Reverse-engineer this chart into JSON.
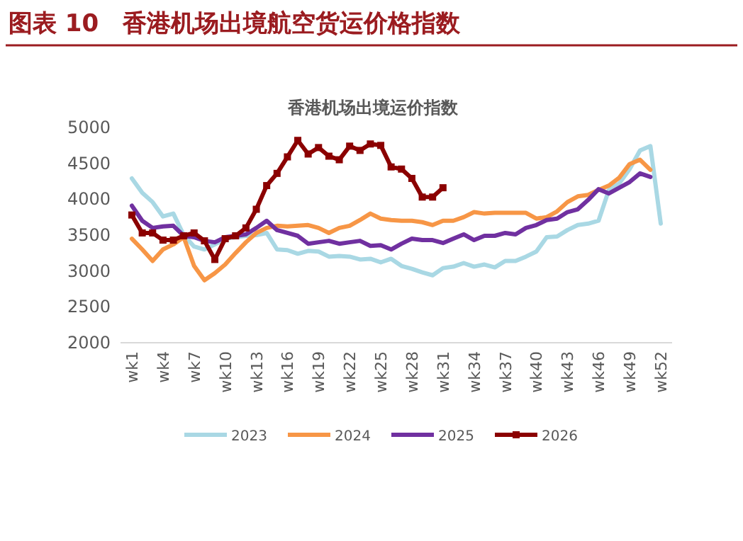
{
  "chart_data": {
    "type": "line",
    "title": "图表 10　香港机场出境航空货运价格指数",
    "subtitle": "香港机场出境运价指数",
    "categories": [
      "wk1",
      null,
      null,
      "wk4",
      null,
      null,
      "wk7",
      null,
      null,
      "wk10",
      null,
      null,
      "wk13",
      null,
      null,
      "wk16",
      null,
      null,
      "wk19",
      null,
      null,
      "wk22",
      null,
      null,
      "wk25",
      null,
      null,
      "wk28",
      null,
      null,
      "wk31",
      null,
      null,
      "wk34",
      null,
      null,
      "wk37",
      null,
      null,
      "wk40",
      null,
      null,
      "wk43",
      null,
      null,
      "wk46",
      null,
      null,
      "wk49",
      null,
      null,
      "wk52"
    ],
    "ylim": [
      2000,
      5000
    ],
    "yticks": [
      2000,
      2500,
      3000,
      3500,
      4000,
      4500,
      5000
    ],
    "grid": false,
    "legend": "bottom",
    "series": [
      {
        "name": "2023",
        "color": "#a9d8e4",
        "marker": "none",
        "values": [
          4290,
          4090,
          3960,
          3760,
          3800,
          3500,
          3340,
          3300,
          3370,
          3450,
          3470,
          3490,
          3500,
          3530,
          3300,
          3290,
          3240,
          3280,
          3270,
          3200,
          3210,
          3200,
          3160,
          3170,
          3120,
          3170,
          3070,
          3030,
          2980,
          2940,
          3040,
          3060,
          3110,
          3060,
          3090,
          3050,
          3140,
          3140,
          3200,
          3270,
          3470,
          3480,
          3570,
          3640,
          3660,
          3700,
          4130,
          4220,
          4420,
          4680,
          4740,
          3660
        ]
      },
      {
        "name": "2024",
        "color": "#f79646",
        "marker": "none",
        "values": [
          3450,
          3300,
          3140,
          3300,
          3370,
          3470,
          3070,
          2870,
          2970,
          3090,
          3250,
          3400,
          3530,
          3600,
          3630,
          3620,
          3630,
          3640,
          3600,
          3530,
          3600,
          3630,
          3710,
          3800,
          3730,
          3710,
          3700,
          3700,
          3680,
          3640,
          3700,
          3700,
          3750,
          3820,
          3800,
          3810,
          3810,
          3810,
          3810,
          3730,
          3750,
          3830,
          3960,
          4040,
          4060,
          4130,
          4190,
          4300,
          4490,
          4550,
          4410,
          null
        ]
      },
      {
        "name": "2025",
        "color": "#7030a0",
        "marker": "none",
        "values": [
          3910,
          3700,
          3600,
          3620,
          3630,
          3490,
          3470,
          3420,
          3400,
          3470,
          3490,
          3510,
          3600,
          3700,
          3570,
          3530,
          3490,
          3380,
          3400,
          3420,
          3380,
          3400,
          3420,
          3350,
          3360,
          3300,
          3380,
          3450,
          3430,
          3430,
          3390,
          3450,
          3510,
          3430,
          3490,
          3490,
          3530,
          3510,
          3600,
          3640,
          3710,
          3730,
          3820,
          3860,
          3990,
          4140,
          4080,
          4160,
          4240,
          4360,
          4310,
          null
        ]
      },
      {
        "name": "2026",
        "color": "#8b0000",
        "marker": "square",
        "values": [
          3780,
          3530,
          3530,
          3430,
          3430,
          3490,
          3530,
          3420,
          3160,
          3450,
          3490,
          3600,
          3860,
          4190,
          4360,
          4590,
          4820,
          4630,
          4720,
          4600,
          4550,
          4740,
          4680,
          4770,
          4750,
          4450,
          4420,
          4290,
          4030,
          4030,
          4160,
          null,
          null,
          null,
          null,
          null,
          null,
          null,
          null,
          null,
          null,
          null,
          null,
          null,
          null,
          null,
          null,
          null,
          null,
          null,
          null,
          null
        ]
      }
    ]
  }
}
